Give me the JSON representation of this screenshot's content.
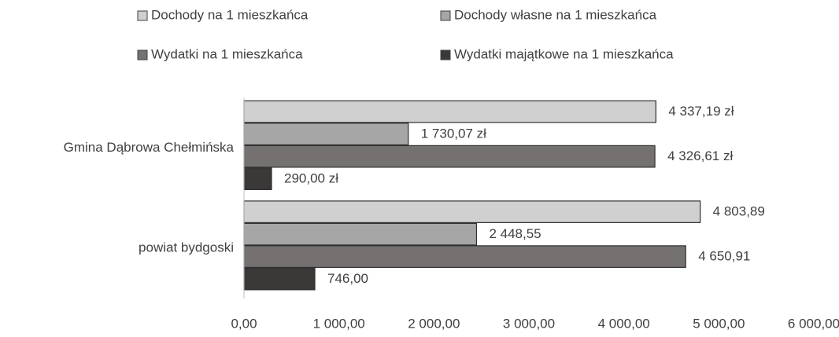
{
  "chart_data": {
    "type": "barh",
    "categories": [
      "Gmina Dąbrowa Chełmińska",
      "powiat bydgoski"
    ],
    "series": [
      {
        "name": "Dochody na 1 mieszkańca",
        "color": "#d0d0d0",
        "values": [
          4337.19,
          4803.89
        ],
        "value_labels": [
          "4 337,19 zł",
          "4 803,89"
        ]
      },
      {
        "name": "Dochody własne na 1 mieszkańca",
        "color": "#a6a6a6",
        "values": [
          1730.07,
          2448.55
        ],
        "value_labels": [
          "1 730,07 zł",
          "2 448,55"
        ]
      },
      {
        "name": "Wydatki na 1 mieszkańca",
        "color": "#767171",
        "values": [
          4326.61,
          4650.91
        ],
        "value_labels": [
          "4 326,61 zł",
          "4 650,91"
        ]
      },
      {
        "name": "Wydatki majątkowe na 1 mieszkańca",
        "color": "#3b3838",
        "values": [
          290.0,
          746.0
        ],
        "value_labels": [
          "290,00 zł",
          "746,00"
        ]
      }
    ],
    "xlim": [
      0,
      6000
    ],
    "xticks": [
      {
        "value": 0,
        "label": "0,00"
      },
      {
        "value": 1000,
        "label": "1 000,00"
      },
      {
        "value": 2000,
        "label": "2 000,00"
      },
      {
        "value": 3000,
        "label": "3 000,00"
      },
      {
        "value": 4000,
        "label": "4 000,00"
      },
      {
        "value": 5000,
        "label": "5 000,00"
      },
      {
        "value": 6000,
        "label": "6 000,00"
      }
    ],
    "legend": "top"
  }
}
